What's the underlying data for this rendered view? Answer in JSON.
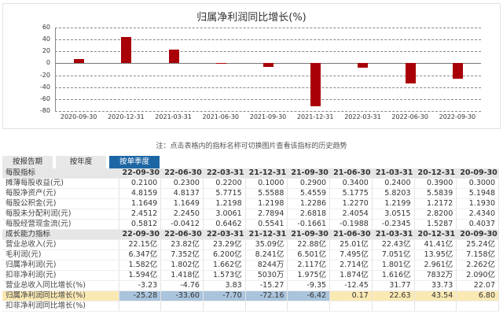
{
  "chart_data": {
    "type": "bar",
    "title": "归属净利润同比增长(%)",
    "xlabel": "",
    "ylabel": "",
    "ylim": [
      -80,
      60
    ],
    "yticks": [
      60,
      40,
      20,
      0,
      -20,
      -40,
      -60,
      -80
    ],
    "grid": true,
    "categories": [
      "2020-09-30",
      "2020-12-31",
      "2021-03-31",
      "2021-06-30",
      "2021-09-30",
      "2021-12-31",
      "2022-03-31",
      "2022-06-30",
      "2022-09-30"
    ],
    "values": [
      6.8,
      43.54,
      22.63,
      0.17,
      -6.42,
      -72.16,
      -7.7,
      -33.6,
      -25.28
    ],
    "color": "#a90008"
  },
  "note": "注：点击表格内的指标名称可切换图片查看该指标的历史趋势",
  "tabs": [
    {
      "label": "按报告期",
      "active": false
    },
    {
      "label": "按年度",
      "active": false
    },
    {
      "label": "按单季度",
      "active": true
    }
  ],
  "table": {
    "sections": [
      {
        "header": [
          "每股指标",
          "22-09-30",
          "22-06-30",
          "22-03-31",
          "21-12-31",
          "21-09-30",
          "21-06-30",
          "21-03-31",
          "20-12-31",
          "20-09-30"
        ],
        "rows": [
          [
            "摊薄每股收益(元)",
            "0.2100",
            "0.2300",
            "0.2200",
            "0.1000",
            "0.2900",
            "0.3400",
            "0.2400",
            "0.3900",
            "0.3000"
          ],
          [
            "每股净资产(元)",
            "4.8159",
            "4.8137",
            "5.7715",
            "5.5588",
            "5.4559",
            "5.1775",
            "5.8203",
            "5.5839",
            "5.1948"
          ],
          [
            "每股公积金(元)",
            "1.1649",
            "1.1649",
            "1.2198",
            "1.2198",
            "1.2286",
            "1.2270",
            "1.2199",
            "1.2172",
            "1.1930"
          ],
          [
            "每股未分配利润(元)",
            "2.4512",
            "2.2450",
            "3.0061",
            "2.7894",
            "2.6818",
            "2.4054",
            "3.0515",
            "2.8200",
            "2.4340"
          ],
          [
            "每股经营现金流(元)",
            "0.5812",
            "-0.0412",
            "0.6462",
            "0.5541",
            "-0.1661",
            "-0.1988",
            "-0.2345",
            "1.5287",
            "0.4037"
          ]
        ]
      },
      {
        "header": [
          "成长能力指标",
          "22-09-30",
          "22-06-30",
          "22-03-31",
          "21-12-31",
          "21-09-30",
          "21-06-30",
          "21-03-31",
          "20-12-31",
          "20-09-30"
        ],
        "rows": [
          [
            "营业总收入(元)",
            "22.15亿",
            "23.82亿",
            "23.29亿",
            "35.09亿",
            "22.88亿",
            "25.01亿",
            "22.43亿",
            "41.41亿",
            "25.24亿"
          ],
          [
            "毛利润(元)",
            "6.347亿",
            "7.352亿",
            "6.200亿",
            "8.241亿",
            "6.501亿",
            "7.495亿",
            "7.051亿",
            "13.95亿",
            "7.158亿"
          ],
          [
            "归属净利润(元)",
            "1.582亿",
            "1.802亿",
            "1.662亿",
            "8244万",
            "2.117亿",
            "2.714亿",
            "1.801亿",
            "2.961亿",
            "2.262亿"
          ],
          [
            "扣非净利润(元)",
            "1.594亿",
            "1.418亿",
            "1.573亿",
            "5030万",
            "1.975亿",
            "1.874亿",
            "1.616亿",
            "7832万",
            "2.090亿"
          ],
          [
            "营业总收入同比增长(%)",
            "-3.23",
            "-4.76",
            "3.83",
            "-15.27",
            "-9.35",
            "-12.45",
            "31.77",
            "33.73",
            "22.07"
          ],
          [
            "归属净利润同比增长(%)",
            "-25.28",
            "-33.60",
            "-7.70",
            "-72.16",
            "-6.42",
            "0.17",
            "22.63",
            "43.54",
            "6.80"
          ],
          [
            "扣非净利润同比增长(%)",
            "",
            "",
            "",
            "",
            "",
            "",
            "",
            "",
            ""
          ]
        ]
      }
    ]
  }
}
